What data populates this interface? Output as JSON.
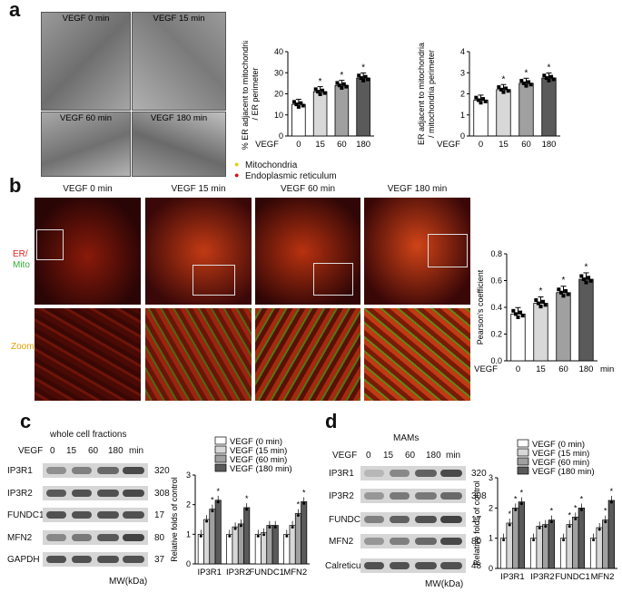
{
  "panels": {
    "a": "a",
    "b": "b",
    "c": "c",
    "d": "d"
  },
  "panel_a": {
    "em_labels": [
      "VEGF  0 min",
      "VEGF 15 min",
      "VEGF 60 min",
      "VEGF 180 min"
    ],
    "legend": {
      "mito": "Mitochondria",
      "er": "Endoplasmic reticulum"
    }
  },
  "panel_b": {
    "time_labels": [
      "VEGF  0 min",
      "VEGF 15 min",
      "VEGF 60 min",
      "VEGF 180 min"
    ],
    "er_label": "ER/",
    "mito_label": "Mito",
    "zoom_label": "Zoom"
  },
  "panel_c": {
    "title": "whole cell fractions",
    "vegf_label": "VEGF",
    "times": [
      "0",
      "15",
      "60",
      "180"
    ],
    "min_label": "min",
    "rows": [
      "IP3R1",
      "IP3R2",
      "FUNDC1",
      "MFN2",
      "GAPDH"
    ],
    "mw": [
      "320",
      "308",
      "17",
      "80",
      "37"
    ],
    "mw_label": "MW(kDa)"
  },
  "panel_d": {
    "title": "MAMs",
    "vegf_label": "VEGF",
    "times": [
      "0",
      "15",
      "60",
      "180"
    ],
    "min_label": "min",
    "rows": [
      "IP3R1",
      "IP3R2",
      "FUNDC1",
      "MFN2",
      "Calreticulin"
    ],
    "mw": [
      "320",
      "308",
      "17",
      "80",
      "48"
    ],
    "mw_label": "MW(kDa)"
  },
  "colors": {
    "c0": "#ffffff",
    "c15": "#d8d8d8",
    "c60": "#a0a0a0",
    "c180": "#5a5a5a"
  },
  "chart_data": [
    {
      "type": "bar",
      "ylabel": "% ER adjacent to mitochondria / ER perimeter",
      "xlabel_prefix": "VEGF",
      "categories": [
        "0",
        "15",
        "60",
        "180"
      ],
      "values": [
        15,
        21,
        24,
        27.5
      ],
      "ylim": [
        0,
        40
      ],
      "yticks": [
        "0",
        "10",
        "20",
        "30",
        "40"
      ],
      "significance": [
        "",
        "*",
        "*",
        "*"
      ]
    },
    {
      "type": "bar",
      "ylabel": "ER adjacent to mitochondria / mitochondria perimeter",
      "xlabel_prefix": "VEGF",
      "categories": [
        "0",
        "15",
        "60",
        "180"
      ],
      "values": [
        1.7,
        2.2,
        2.5,
        2.75
      ],
      "ylim": [
        0,
        4
      ],
      "yticks": [
        "0",
        "1",
        "2",
        "3",
        "4"
      ],
      "significance": [
        "",
        "*",
        "*",
        "*"
      ]
    },
    {
      "type": "bar",
      "ylabel": "Pearson's coefficient",
      "xlabel_prefix": "VEGF",
      "categories": [
        "0",
        "15",
        "60",
        "180"
      ],
      "unit": "min",
      "values": [
        0.35,
        0.43,
        0.51,
        0.61
      ],
      "ylim": [
        0,
        0.8
      ],
      "yticks": [
        "0.0",
        "0.2",
        "0.4",
        "0.6",
        "0.8"
      ],
      "significance": [
        "",
        "*",
        "*",
        "*"
      ]
    },
    {
      "type": "bar",
      "ylabel": "Relative folds of control",
      "categories": [
        "IP3R1",
        "IP3R2",
        "FUNDC1",
        "MFN2"
      ],
      "ylim": [
        0,
        3
      ],
      "yticks": [
        "0",
        "1",
        "2",
        "3"
      ],
      "series": [
        {
          "name": "VEGF (0 min)",
          "values": [
            1.0,
            1.0,
            1.0,
            1.0
          ],
          "sig": [
            "",
            "",
            "",
            ""
          ]
        },
        {
          "name": "VEGF (15 min)",
          "values": [
            1.5,
            1.25,
            1.05,
            1.3
          ],
          "sig": [
            "",
            "",
            "",
            ""
          ]
        },
        {
          "name": "VEGF (60 min)",
          "values": [
            1.85,
            1.35,
            1.3,
            1.7
          ],
          "sig": [
            "*",
            "",
            "",
            "*"
          ]
        },
        {
          "name": "VEGF (180 min)",
          "values": [
            2.15,
            1.9,
            1.3,
            2.1
          ],
          "sig": [
            "*",
            "*",
            "",
            "*"
          ]
        }
      ]
    },
    {
      "type": "bar",
      "ylabel": "Relative folds of control",
      "categories": [
        "IP3R1",
        "IP3R2",
        "FUNDC1",
        "MFN2"
      ],
      "ylim": [
        0,
        3
      ],
      "yticks": [
        "0",
        "1",
        "2",
        "3"
      ],
      "series": [
        {
          "name": "VEGF (0 min)",
          "values": [
            1.0,
            1.0,
            1.0,
            1.0
          ],
          "sig": [
            "",
            "",
            "",
            ""
          ]
        },
        {
          "name": "VEGF (15 min)",
          "values": [
            1.5,
            1.4,
            1.45,
            1.35
          ],
          "sig": [
            "*",
            "",
            "*",
            ""
          ]
        },
        {
          "name": "VEGF (60 min)",
          "values": [
            2.0,
            1.45,
            1.7,
            1.6
          ],
          "sig": [
            "*",
            "",
            "*",
            "*"
          ]
        },
        {
          "name": "VEGF (180 min)",
          "values": [
            2.2,
            1.6,
            2.0,
            2.25
          ],
          "sig": [
            "*",
            "*",
            "*",
            "*"
          ]
        }
      ]
    }
  ]
}
